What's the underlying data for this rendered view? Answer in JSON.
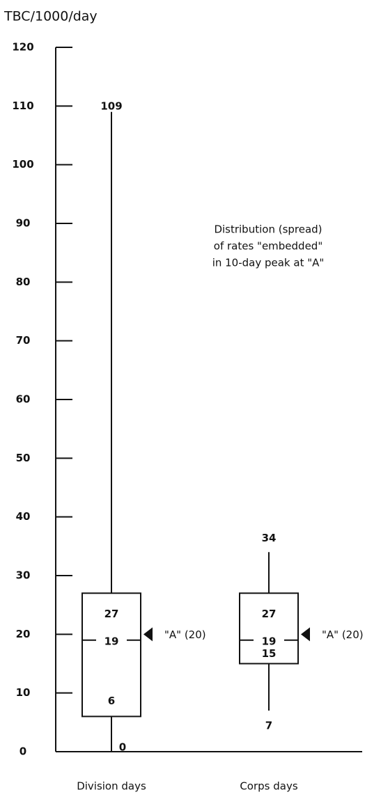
{
  "chart_data": {
    "type": "box",
    "title": "TBC/1000/day",
    "categories": [
      "Division days",
      "Corps days"
    ],
    "series": [
      {
        "whislo": 0,
        "q1": 6,
        "med": 19,
        "q3": 27,
        "whishi": 109,
        "marker": {
          "value": 20,
          "label": "\"A\" (20)"
        }
      },
      {
        "whislo": 7,
        "q1": 15,
        "med": 19,
        "q3": 27,
        "whishi": 34,
        "marker": {
          "value": 20,
          "label": "\"A\" (20)"
        }
      }
    ],
    "annotation": [
      "Distribution (spread)",
      "of rates \"embedded\"",
      "in 10-day peak at \"A\""
    ],
    "ylim": [
      0,
      120
    ],
    "yticks": [
      0,
      10,
      20,
      30,
      40,
      50,
      60,
      70,
      80,
      90,
      100,
      110,
      120
    ],
    "color": "#111111"
  }
}
